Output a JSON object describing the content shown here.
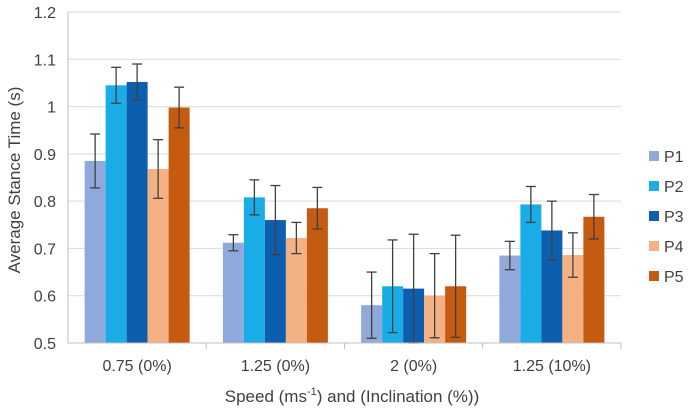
{
  "chart_data": {
    "type": "bar",
    "title": "",
    "xlabel": "Speed (ms-1) and (Inclination (%))",
    "xlabel_parts": {
      "pre": "Speed (ms",
      "sup": "-1",
      "post": ") and (Inclination (%))"
    },
    "ylabel": "Average Stance Time (s)",
    "ylim": [
      0.5,
      1.2
    ],
    "yticks": [
      0.5,
      0.6,
      0.7,
      0.8,
      0.9,
      1,
      1.1,
      1.2
    ],
    "ytick_labels": [
      "0.5",
      "0.6",
      "0.7",
      "0.8",
      "0.9",
      "1",
      "1.1",
      "1.2"
    ],
    "grid": true,
    "legend_position": "right",
    "categories": [
      "0.75 (0%)",
      "1.25 (0%)",
      "2 (0%)",
      "1.25 (10%)"
    ],
    "series": [
      {
        "name": "P1",
        "color": "#8FA9DB",
        "values": [
          0.885,
          0.712,
          0.58,
          0.685
        ],
        "errors": [
          0.057,
          0.017,
          0.07,
          0.03
        ]
      },
      {
        "name": "P2",
        "color": "#1AACE6",
        "values": [
          1.045,
          0.808,
          0.62,
          0.793
        ],
        "errors": [
          0.038,
          0.037,
          0.098,
          0.038
        ]
      },
      {
        "name": "P3",
        "color": "#0D5EAF",
        "values": [
          1.052,
          0.76,
          0.615,
          0.738
        ],
        "errors": [
          0.038,
          0.073,
          0.115,
          0.062
        ]
      },
      {
        "name": "P4",
        "color": "#F4B183",
        "values": [
          0.868,
          0.722,
          0.6,
          0.686
        ],
        "errors": [
          0.062,
          0.033,
          0.089,
          0.047
        ]
      },
      {
        "name": "P5",
        "color": "#C55A11",
        "values": [
          0.998,
          0.785,
          0.62,
          0.767
        ],
        "errors": [
          0.043,
          0.044,
          0.108,
          0.047
        ]
      }
    ]
  }
}
